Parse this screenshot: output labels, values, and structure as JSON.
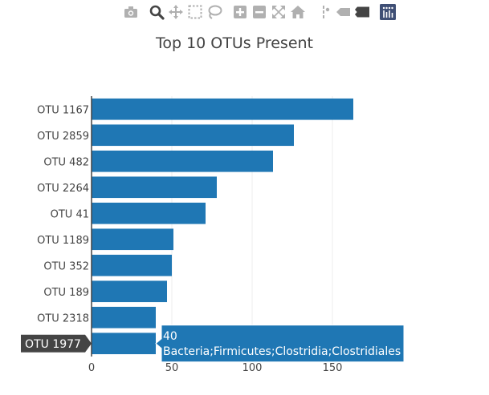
{
  "modebar": {
    "buttons": [
      {
        "name": "camera-icon",
        "color": "#b0b0b0"
      },
      {
        "name": "zoom-icon",
        "color": "#444444"
      },
      {
        "name": "pan-icon",
        "color": "#b0b0b0"
      },
      {
        "name": "box-select-icon",
        "color": "#b0b0b0"
      },
      {
        "name": "lasso-select-icon",
        "color": "#b0b0b0"
      },
      {
        "name": "zoom-in-icon",
        "color": "#b0b0b0"
      },
      {
        "name": "zoom-out-icon",
        "color": "#b0b0b0"
      },
      {
        "name": "autoscale-icon",
        "color": "#b0b0b0"
      },
      {
        "name": "reset-axes-icon",
        "color": "#b0b0b0"
      },
      {
        "name": "spike-lines-icon",
        "color": "#b0b0b0"
      },
      {
        "name": "hover-closest-icon",
        "color": "#b0b0b0"
      },
      {
        "name": "hover-compare-icon",
        "color": "#444444"
      },
      {
        "name": "plotly-logo-icon",
        "color": "#3f4f75"
      }
    ]
  },
  "chart_data": {
    "type": "bar",
    "orientation": "horizontal",
    "title": "Top 10 OTUs Present",
    "categories": [
      "OTU 1167",
      "OTU 2859",
      "OTU 482",
      "OTU 2264",
      "OTU 41",
      "OTU 1189",
      "OTU 352",
      "OTU 189",
      "OTU 2318",
      "OTU 1977"
    ],
    "values": [
      163,
      126,
      113,
      78,
      71,
      51,
      50,
      47,
      40,
      40
    ],
    "xlim": [
      0,
      185
    ],
    "xticks": [
      0,
      50,
      100,
      150
    ],
    "x_grid": true,
    "bar_color": "#1f77b4",
    "hover": {
      "category_label": "OTU 1977",
      "value_text": "40",
      "label_text": "Bacteria;Firmicutes;Clostridia;Clostridiales",
      "color": "#1f77b4"
    }
  }
}
